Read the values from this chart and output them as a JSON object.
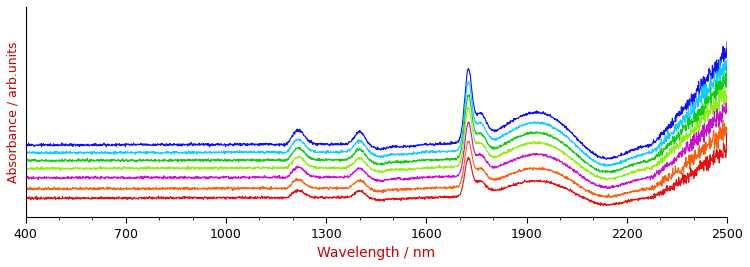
{
  "x_min": 400,
  "x_max": 2500,
  "x_ticks": [
    400,
    700,
    1000,
    1300,
    1600,
    1900,
    2200,
    2500
  ],
  "xlabel": "Wavelength / nm",
  "ylabel": "Absorbance / arb.units",
  "xlabel_color": "#cc0000",
  "ylabel_color": "#cc0000",
  "background_color": "#ffffff",
  "num_spectra": 7,
  "colors": [
    "#0000ff",
    "#00ccff",
    "#00cc00",
    "#88ee00",
    "#cc00cc",
    "#ff5500",
    "#ee0000"
  ],
  "base_offsets": [
    0.21,
    0.185,
    0.16,
    0.135,
    0.105,
    0.07,
    0.04
  ],
  "peak_scales": [
    1.0,
    0.93,
    0.86,
    0.79,
    0.72,
    0.62,
    0.52
  ],
  "noise_scale": 0.002,
  "figsize": [
    7.5,
    2.67
  ],
  "dpi": 100
}
